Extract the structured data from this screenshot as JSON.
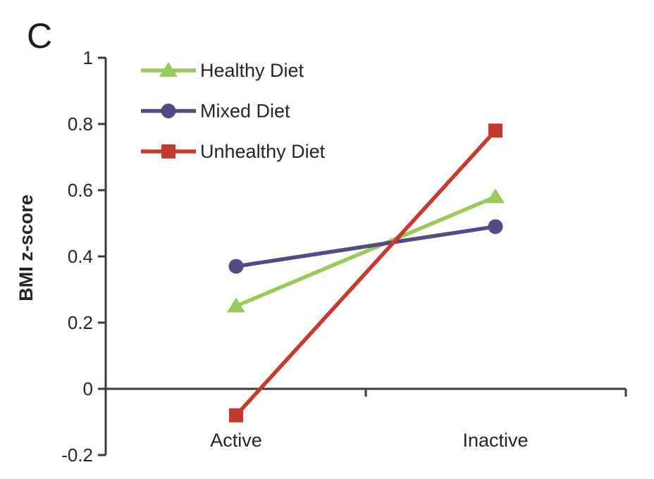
{
  "chart_data": {
    "type": "line",
    "panel_label": "C",
    "title": "",
    "xlabel": "",
    "ylabel": "BMI z-score",
    "categories": [
      "Active",
      "Inactive"
    ],
    "series": [
      {
        "name": "Healthy Diet",
        "marker": "triangle",
        "color": "#9bc95c",
        "values": [
          0.25,
          0.58
        ]
      },
      {
        "name": "Mixed Diet",
        "marker": "circle",
        "color": "#564a85",
        "values": [
          0.37,
          0.49
        ]
      },
      {
        "name": "Unhealthy Diet",
        "marker": "square",
        "color": "#c63b2d",
        "values": [
          -0.08,
          0.78
        ]
      }
    ],
    "ylim": [
      -0.2,
      1
    ],
    "ytick_labels": [
      "1",
      "0.8",
      "0.6",
      "0.4",
      "0.2",
      "0",
      "-0.2"
    ],
    "ytick_values": [
      1,
      0.8,
      0.6,
      0.4,
      0.2,
      0,
      -0.2
    ],
    "grid": false,
    "legend_position": "top-left-inside",
    "axis_color": "#3b3b3b",
    "text_color": "#262626",
    "background_color": "#ffffff"
  }
}
